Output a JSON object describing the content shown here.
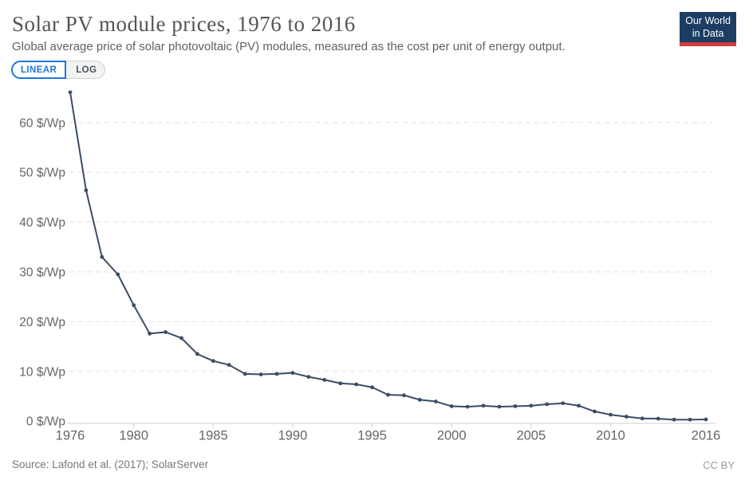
{
  "header": {
    "title": "Solar PV module prices, 1976 to 2016",
    "subtitle": "Global average price of solar photovoltaic (PV) modules, measured as the cost per unit of energy output.",
    "logo": {
      "line1": "Our World",
      "line2": "in Data",
      "bg_color": "#1d3d63",
      "accent_color": "#d23d3d"
    }
  },
  "controls": {
    "linear_label": "LINEAR",
    "log_label": "LOG",
    "selected": "LINEAR",
    "accent_color": "#2176d6"
  },
  "footer": {
    "source": "Source: Lafond et al. (2017); SolarServer",
    "license": "CC BY"
  },
  "chart_data": {
    "type": "line",
    "title": "Solar PV module prices, 1976 to 2016",
    "series_name": "Solar PV module price",
    "unit": "$/Wp",
    "x": [
      1976,
      1977,
      1978,
      1979,
      1980,
      1981,
      1982,
      1983,
      1984,
      1985,
      1986,
      1987,
      1988,
      1989,
      1990,
      1991,
      1992,
      1993,
      1994,
      1995,
      1996,
      1997,
      1998,
      1999,
      2000,
      2001,
      2002,
      2003,
      2004,
      2005,
      2006,
      2007,
      2008,
      2009,
      2010,
      2011,
      2012,
      2013,
      2014,
      2015,
      2016
    ],
    "values": [
      66.1,
      46.4,
      33,
      29.5,
      23.3,
      17.6,
      17.9,
      16.7,
      13.5,
      12.1,
      11.3,
      9.5,
      9.4,
      9.5,
      9.7,
      8.9,
      8.3,
      7.6,
      7.4,
      6.8,
      5.3,
      5.2,
      4.3,
      3.95,
      3.0,
      2.9,
      3.1,
      2.9,
      3.0,
      3.1,
      3.4,
      3.6,
      3.1,
      1.95,
      1.3,
      0.9,
      0.55,
      0.5,
      0.3,
      0.3,
      0.35
    ],
    "x_ticks": [
      1976,
      1980,
      1985,
      1990,
      1995,
      2000,
      2005,
      2010,
      2016
    ],
    "x_tick_labels": [
      "1976",
      "1980",
      "1985",
      "1990",
      "1995",
      "2000",
      "2005",
      "2010",
      "2016"
    ],
    "y_ticks": [
      0,
      10,
      20,
      30,
      40,
      50,
      60
    ],
    "y_tick_labels": [
      "0 $/Wp",
      "10 $/Wp",
      "20 $/Wp",
      "30 $/Wp",
      "40 $/Wp",
      "50 $/Wp",
      "60 $/Wp"
    ],
    "xlim": [
      1976,
      2016
    ],
    "ylim": [
      0,
      66.5
    ],
    "grid": "horizontal-dashed",
    "line_color": "#3b4c63",
    "marker": "circle"
  }
}
